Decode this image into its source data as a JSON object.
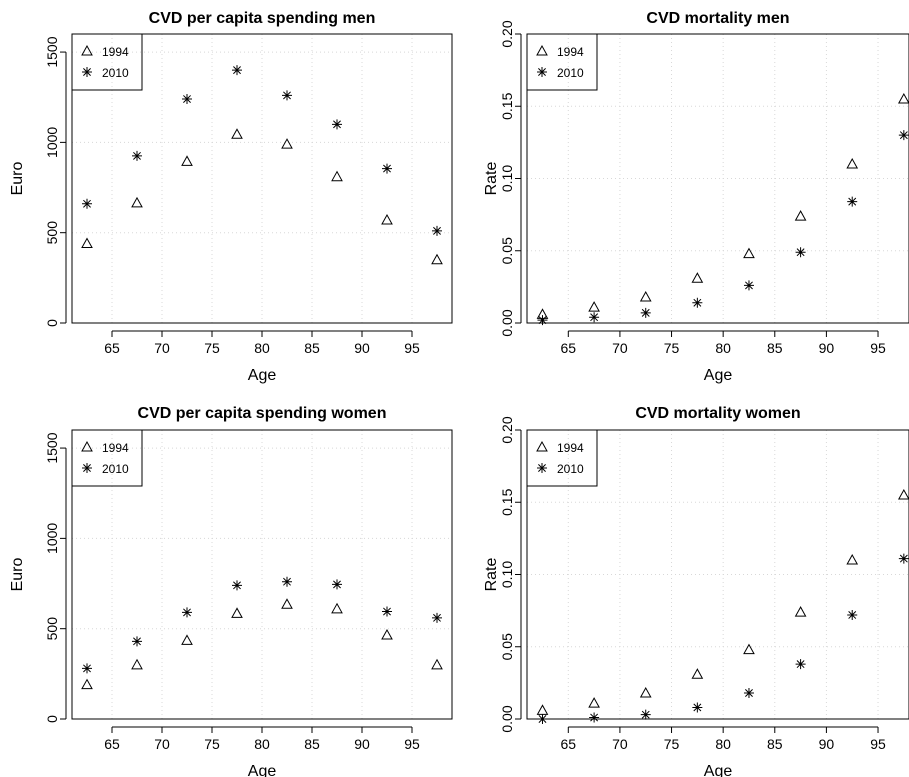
{
  "chart_data": [
    {
      "type": "scatter",
      "title": "CVD per capita spending men",
      "xlabel": "Age",
      "ylabel": "Euro",
      "xlim": [
        61,
        99
      ],
      "ylim": [
        0,
        1600
      ],
      "xticks": [
        65,
        70,
        75,
        80,
        85,
        90,
        95
      ],
      "yticks": [
        0,
        500,
        1000,
        1500
      ],
      "ytick_rotated": true,
      "grid": true,
      "legend_position": "top-left",
      "series": [
        {
          "name": "1994",
          "marker": "triangle",
          "x": [
            62.5,
            67.5,
            72.5,
            77.5,
            82.5,
            87.5,
            92.5,
            97.5
          ],
          "y": [
            440,
            665,
            895,
            1045,
            990,
            810,
            570,
            350
          ]
        },
        {
          "name": "2010",
          "marker": "asterisk",
          "x": [
            62.5,
            67.5,
            72.5,
            77.5,
            82.5,
            87.5,
            92.5,
            97.5
          ],
          "y": [
            660,
            925,
            1240,
            1400,
            1260,
            1100,
            855,
            510
          ]
        }
      ]
    },
    {
      "type": "scatter",
      "title": "CVD mortality men",
      "xlabel": "Age",
      "ylabel": "Rate",
      "xlim": [
        61,
        98
      ],
      "ylim": [
        0,
        0.2
      ],
      "xticks": [
        65,
        70,
        75,
        80,
        85,
        90,
        95
      ],
      "yticks": [
        "0.00",
        "0.05",
        "0.10",
        "0.15",
        "0.20"
      ],
      "ytick_rotated": true,
      "grid": true,
      "legend_position": "top-left",
      "series": [
        {
          "name": "1994",
          "marker": "triangle",
          "x": [
            62.5,
            67.5,
            72.5,
            77.5,
            82.5,
            87.5,
            92.5,
            97.5
          ],
          "y": [
            0.006,
            0.011,
            0.018,
            0.031,
            0.048,
            0.074,
            0.11,
            0.155
          ]
        },
        {
          "name": "2010",
          "marker": "asterisk",
          "x": [
            62.5,
            67.5,
            72.5,
            77.5,
            82.5,
            87.5,
            92.5,
            97.5
          ],
          "y": [
            0.002,
            0.004,
            0.007,
            0.014,
            0.026,
            0.049,
            0.084,
            0.13
          ]
        }
      ]
    },
    {
      "type": "scatter",
      "title": "CVD per capita spending women",
      "xlabel": "Age",
      "ylabel": "Euro",
      "xlim": [
        61,
        99
      ],
      "ylim": [
        0,
        1600
      ],
      "xticks": [
        65,
        70,
        75,
        80,
        85,
        90,
        95
      ],
      "yticks": [
        0,
        500,
        1000,
        1500
      ],
      "ytick_rotated": true,
      "grid": true,
      "legend_position": "top-left",
      "series": [
        {
          "name": "1994",
          "marker": "triangle",
          "x": [
            62.5,
            67.5,
            72.5,
            77.5,
            82.5,
            87.5,
            92.5,
            97.5
          ],
          "y": [
            190,
            300,
            435,
            585,
            635,
            610,
            465,
            300
          ]
        },
        {
          "name": "2010",
          "marker": "asterisk",
          "x": [
            62.5,
            67.5,
            72.5,
            77.5,
            82.5,
            87.5,
            92.5,
            97.5
          ],
          "y": [
            280,
            430,
            590,
            740,
            760,
            745,
            595,
            560
          ]
        }
      ]
    },
    {
      "type": "scatter",
      "title": "CVD mortality women",
      "xlabel": "Age",
      "ylabel": "Rate",
      "xlim": [
        61,
        98
      ],
      "ylim": [
        0,
        0.2
      ],
      "xticks": [
        65,
        70,
        75,
        80,
        85,
        90,
        95
      ],
      "yticks": [
        "0.00",
        "0.05",
        "0.10",
        "0.15",
        "0.20"
      ],
      "ytick_rotated": true,
      "grid": true,
      "legend_position": "top-left",
      "series": [
        {
          "name": "1994",
          "marker": "triangle",
          "x": [
            62.5,
            67.5,
            72.5,
            77.5,
            82.5,
            87.5,
            92.5,
            97.5
          ],
          "y": [
            0.006,
            0.011,
            0.018,
            0.031,
            0.048,
            0.074,
            0.11,
            0.155
          ]
        },
        {
          "name": "2010",
          "marker": "asterisk",
          "x": [
            62.5,
            67.5,
            72.5,
            77.5,
            82.5,
            87.5,
            92.5,
            97.5
          ],
          "y": [
            0.0,
            0.001,
            0.003,
            0.008,
            0.018,
            0.038,
            0.072,
            0.111
          ]
        }
      ]
    }
  ]
}
